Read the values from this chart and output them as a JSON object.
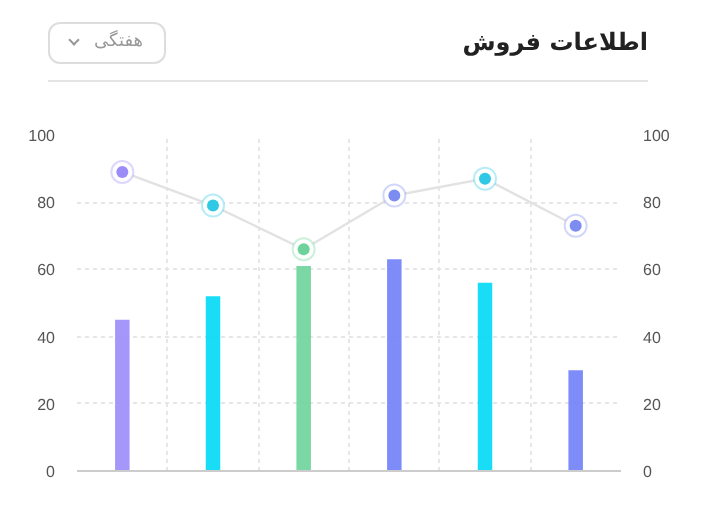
{
  "chart_data": {
    "type": "bar",
    "title": "اطلاعات فروش",
    "annotations": [
      "هفتگی"
    ],
    "categories": [
      null,
      null,
      null,
      null,
      null,
      null
    ],
    "series": [
      {
        "colors": [
          "#9b8cf8",
          "#00d8f5",
          "#6dd39a",
          "#6f7ff8",
          "#00d8f5",
          "#6f7ff8"
        ],
        "values": [
          45,
          52,
          61,
          63,
          56,
          30
        ]
      },
      {
        "type": "line",
        "color": "#e2e2e2",
        "colors": [
          "#9b8cf8",
          "#2fc9e6",
          "#6dd39a",
          "#7d8cf0",
          "#2fc9e6",
          "#7d8cf0"
        ],
        "values": [
          89,
          79,
          66,
          82,
          87,
          73
        ],
        "marker": "circle"
      }
    ],
    "ylim": [
      0,
      100
    ],
    "yticks": [
      0,
      20,
      40,
      60,
      80,
      100
    ],
    "y2lim": [
      0,
      100
    ],
    "y2ticks": [
      0,
      20,
      40,
      60,
      80,
      100
    ],
    "grid": true
  }
}
